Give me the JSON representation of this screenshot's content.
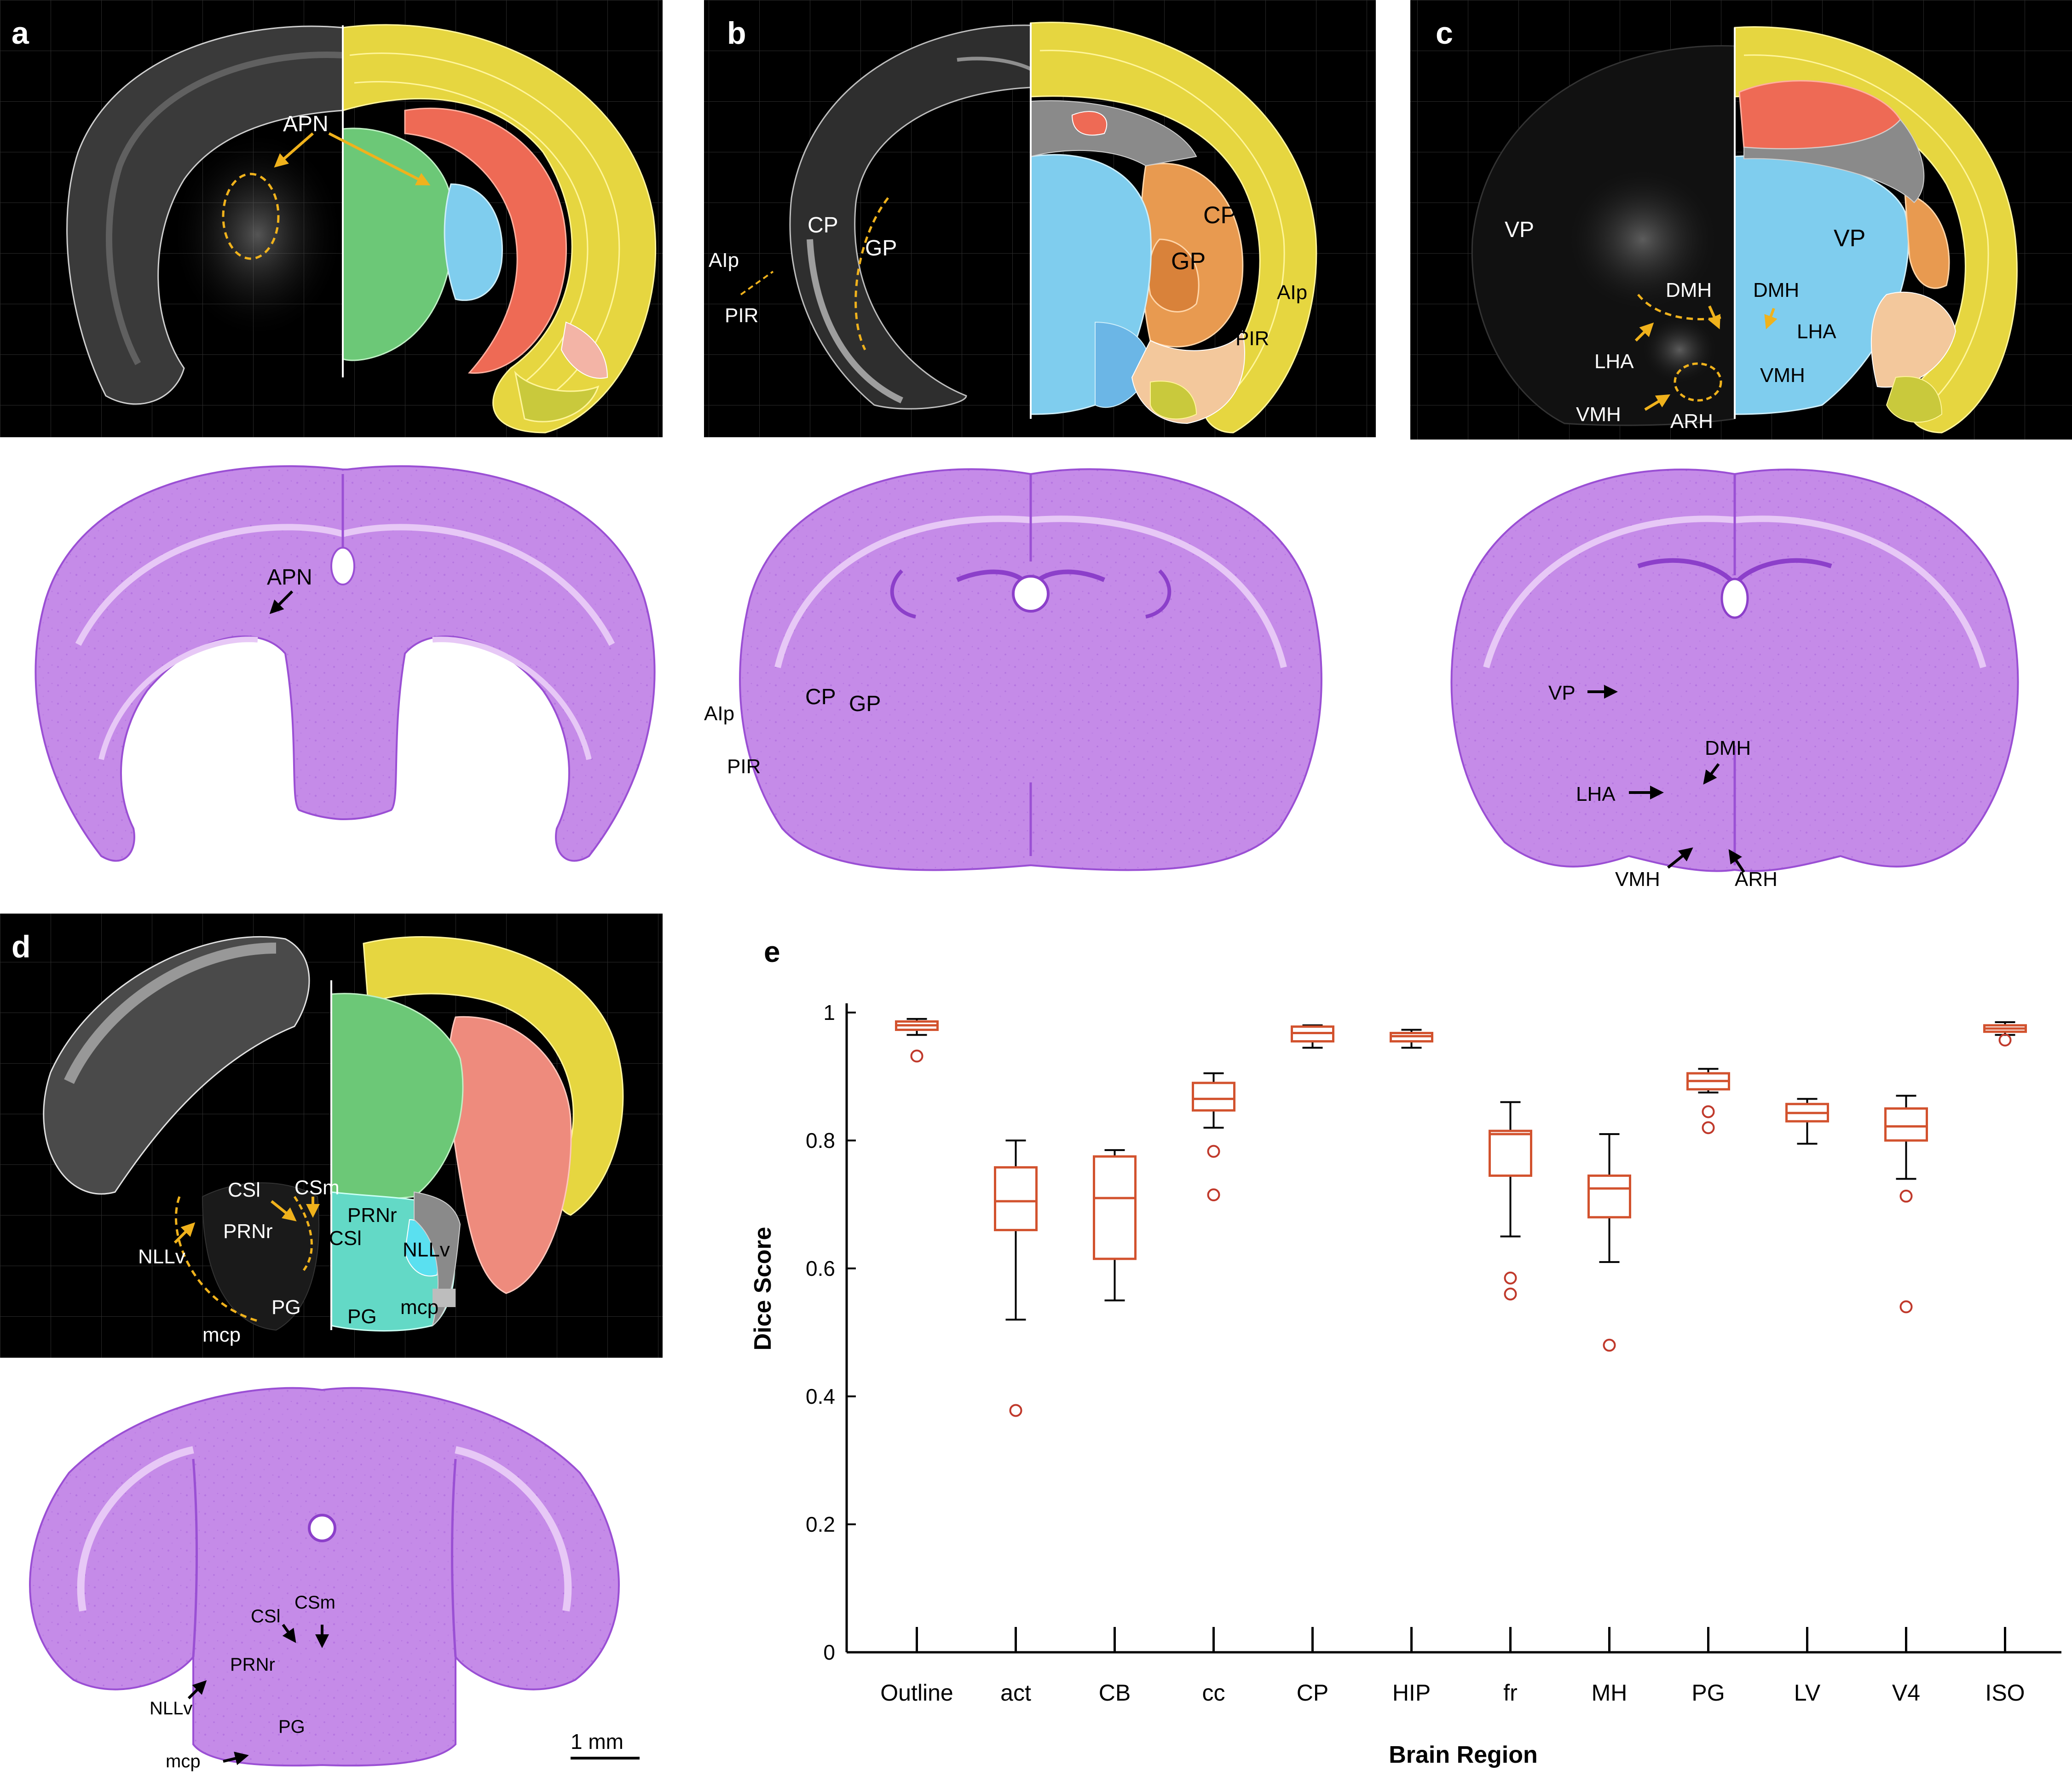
{
  "panels": {
    "a": {
      "letter": "a",
      "top_labels": [
        "APN"
      ],
      "bottom_labels": [
        "APN"
      ]
    },
    "b": {
      "letter": "b",
      "top_labels": [
        "CP",
        "GP",
        "AIp",
        "PIR",
        "CP",
        "GP",
        "AIp",
        "PIR"
      ],
      "bottom_labels": [
        "AIp",
        "CP",
        "GP",
        "PIR"
      ]
    },
    "c": {
      "letter": "c",
      "top_labels": [
        "VP",
        "DMH",
        "LHA",
        "VMH",
        "ARH",
        "DMH",
        "VP",
        "LHA",
        "VMH"
      ],
      "bottom_labels": [
        "VP",
        "DMH",
        "LHA",
        "VMH",
        "ARH"
      ]
    },
    "d": {
      "letter": "d",
      "top_labels": [
        "CSl",
        "CSm",
        "NLLv",
        "PRNr",
        "PG",
        "mcp",
        "PRNr",
        "CSl",
        "NLLv",
        "PG",
        "mcp"
      ],
      "bottom_labels": [
        "CSl",
        "CSm",
        "PRNr",
        "NLLv",
        "PG",
        "mcp"
      ],
      "scale_bar": "1 mm"
    },
    "e": {
      "letter": "e"
    }
  },
  "colors": {
    "isocortex": "#e6d640",
    "isocortex_line": "#fff59a",
    "fiber": "#8a8a8a",
    "hippocampus": "#ee6a55",
    "thalamus": "#6cc877",
    "hypothalamus": "#7fcdee",
    "striatum": "#e89a50",
    "olfactory": "#f3c89c",
    "cortical_subplate": "#c9c93c",
    "pons": "#63d9c6",
    "nissl": "#c58be8",
    "nissl_dark": "#9a4fd4",
    "arrow_yellow": "#f0b21c",
    "box": "#d2522e",
    "outlier": "#c0392b"
  },
  "chart_data": {
    "type": "box",
    "title": "",
    "xlabel": "Brain Region",
    "ylabel": "Dice Score",
    "ylim": [
      0,
      1
    ],
    "yticks": [
      "0",
      "0.2",
      "0.4",
      "0.6",
      "0.8",
      "1"
    ],
    "categories": [
      "Outline",
      "act",
      "CB",
      "cc",
      "CP",
      "HIP",
      "fr",
      "MH",
      "PG",
      "LV",
      "V4",
      "ISO"
    ],
    "boxes": [
      {
        "whisker_low": 0.965,
        "q1": 0.973,
        "median": 0.98,
        "q3": 0.986,
        "whisker_high": 0.99,
        "outliers": [
          0.932
        ]
      },
      {
        "whisker_low": 0.52,
        "q1": 0.66,
        "median": 0.705,
        "q3": 0.758,
        "whisker_high": 0.8,
        "outliers": [
          0.378
        ]
      },
      {
        "whisker_low": 0.55,
        "q1": 0.615,
        "median": 0.71,
        "q3": 0.775,
        "whisker_high": 0.785,
        "outliers": []
      },
      {
        "whisker_low": 0.82,
        "q1": 0.847,
        "median": 0.865,
        "q3": 0.89,
        "whisker_high": 0.905,
        "outliers": [
          0.783,
          0.715
        ]
      },
      {
        "whisker_low": 0.945,
        "q1": 0.955,
        "median": 0.968,
        "q3": 0.978,
        "whisker_high": 0.98,
        "outliers": []
      },
      {
        "whisker_low": 0.945,
        "q1": 0.955,
        "median": 0.963,
        "q3": 0.968,
        "whisker_high": 0.973,
        "outliers": []
      },
      {
        "whisker_low": 0.65,
        "q1": 0.745,
        "median": 0.81,
        "q3": 0.815,
        "whisker_high": 0.86,
        "outliers": [
          0.585,
          0.56
        ]
      },
      {
        "whisker_low": 0.61,
        "q1": 0.68,
        "median": 0.725,
        "q3": 0.745,
        "whisker_high": 0.81,
        "outliers": [
          0.48
        ]
      },
      {
        "whisker_low": 0.875,
        "q1": 0.88,
        "median": 0.893,
        "q3": 0.905,
        "whisker_high": 0.912,
        "outliers": [
          0.845,
          0.82
        ]
      },
      {
        "whisker_low": 0.795,
        "q1": 0.83,
        "median": 0.843,
        "q3": 0.857,
        "whisker_high": 0.865,
        "outliers": []
      },
      {
        "whisker_low": 0.74,
        "q1": 0.8,
        "median": 0.822,
        "q3": 0.85,
        "whisker_high": 0.87,
        "outliers": [
          0.713,
          0.54
        ]
      },
      {
        "whisker_low": 0.965,
        "q1": 0.97,
        "median": 0.975,
        "q3": 0.98,
        "whisker_high": 0.985,
        "outliers": [
          0.957
        ]
      }
    ]
  }
}
